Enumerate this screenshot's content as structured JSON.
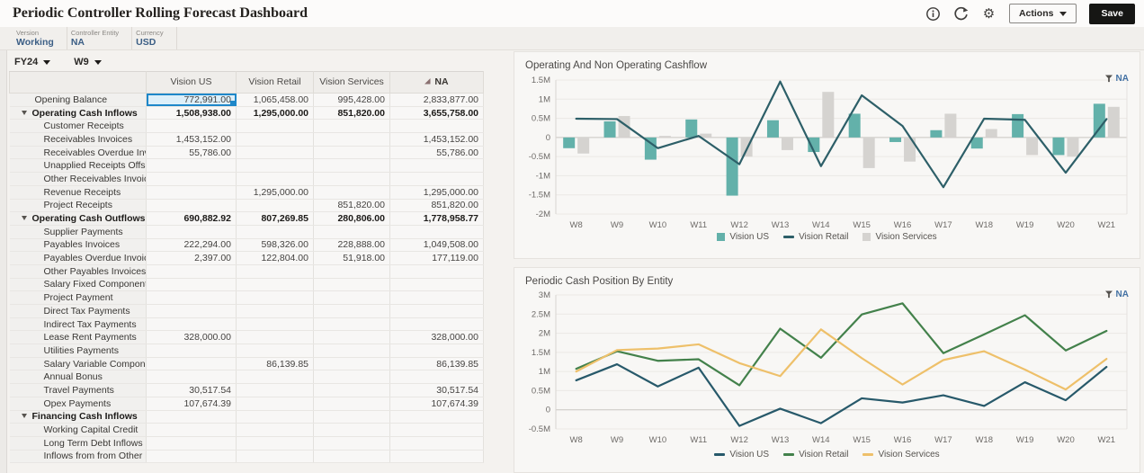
{
  "header": {
    "title": "Periodic Controller Rolling Forecast Dashboard",
    "actions_label": "Actions",
    "save_label": "Save"
  },
  "pov": {
    "items": [
      {
        "label": "Version",
        "value": "Working"
      },
      {
        "label": "Controller Entity",
        "value": "NA"
      },
      {
        "label": "Currency",
        "value": "USD"
      }
    ]
  },
  "grid": {
    "year": "FY24",
    "week": "W9",
    "columns": [
      "Vision US",
      "Vision Retail",
      "Vision Services",
      "NA"
    ],
    "rows": [
      {
        "label": "Opening Balance",
        "level": 0,
        "bold": false,
        "selected": 0,
        "values": [
          "772,991.00",
          "1,065,458.00",
          "995,428.00",
          "2,833,877.00"
        ]
      },
      {
        "label": "Operating Cash Inflows",
        "level": 0,
        "bold": true,
        "expand": true,
        "values": [
          "1,508,938.00",
          "1,295,000.00",
          "851,820.00",
          "3,655,758.00"
        ]
      },
      {
        "label": "Customer Receipts",
        "level": 1,
        "values": [
          "",
          "",
          "",
          ""
        ]
      },
      {
        "label": "Receivables Invoices",
        "level": 1,
        "values": [
          "1,453,152.00",
          "",
          "",
          "1,453,152.00"
        ]
      },
      {
        "label": "Receivables Overdue Invoices",
        "level": 1,
        "values": [
          "55,786.00",
          "",
          "",
          "55,786.00"
        ]
      },
      {
        "label": "Unapplied Receipts Offset",
        "level": 1,
        "values": [
          "",
          "",
          "",
          ""
        ]
      },
      {
        "label": "Other Receivables Invoices",
        "level": 1,
        "values": [
          "",
          "",
          "",
          ""
        ]
      },
      {
        "label": "Revenue Receipts",
        "level": 1,
        "values": [
          "",
          "1,295,000.00",
          "",
          "1,295,000.00"
        ]
      },
      {
        "label": "Project Receipts",
        "level": 1,
        "values": [
          "",
          "",
          "851,820.00",
          "851,820.00"
        ]
      },
      {
        "label": "Operating Cash Outflows",
        "level": 0,
        "bold": true,
        "expand": true,
        "values": [
          "690,882.92",
          "807,269.85",
          "280,806.00",
          "1,778,958.77"
        ]
      },
      {
        "label": "Supplier Payments",
        "level": 1,
        "values": [
          "",
          "",
          "",
          ""
        ]
      },
      {
        "label": "Payables Invoices",
        "level": 1,
        "values": [
          "222,294.00",
          "598,326.00",
          "228,888.00",
          "1,049,508.00"
        ]
      },
      {
        "label": "Payables Overdue Invoices",
        "level": 1,
        "values": [
          "2,397.00",
          "122,804.00",
          "51,918.00",
          "177,119.00"
        ]
      },
      {
        "label": "Other Payables Invoices",
        "level": 1,
        "values": [
          "",
          "",
          "",
          ""
        ]
      },
      {
        "label": "Salary Fixed Component",
        "level": 1,
        "values": [
          "",
          "",
          "",
          ""
        ]
      },
      {
        "label": "Project Payment",
        "level": 1,
        "values": [
          "",
          "",
          "",
          ""
        ]
      },
      {
        "label": "Direct Tax Payments",
        "level": 1,
        "values": [
          "",
          "",
          "",
          ""
        ]
      },
      {
        "label": "Indirect Tax Payments",
        "level": 1,
        "values": [
          "",
          "",
          "",
          ""
        ]
      },
      {
        "label": "Lease Rent Payments",
        "level": 1,
        "values": [
          "328,000.00",
          "",
          "",
          "328,000.00"
        ]
      },
      {
        "label": "Utilities Payments",
        "level": 1,
        "values": [
          "",
          "",
          "",
          ""
        ]
      },
      {
        "label": "Salary Variable Component",
        "level": 1,
        "values": [
          "",
          "86,139.85",
          "",
          "86,139.85"
        ]
      },
      {
        "label": "Annual Bonus",
        "level": 1,
        "values": [
          "",
          "",
          "",
          ""
        ]
      },
      {
        "label": "Travel Payments",
        "level": 1,
        "values": [
          "30,517.54",
          "",
          "",
          "30,517.54"
        ]
      },
      {
        "label": "Opex Payments",
        "level": 1,
        "values": [
          "107,674.39",
          "",
          "",
          "107,674.39"
        ]
      },
      {
        "label": "Financing Cash Inflows",
        "level": 0,
        "bold": true,
        "expand": true,
        "values": [
          "",
          "",
          "",
          ""
        ]
      },
      {
        "label": "Working Capital Credit",
        "level": 1,
        "values": [
          "",
          "",
          "",
          ""
        ]
      },
      {
        "label": "Long Term Debt Inflows",
        "level": 1,
        "values": [
          "",
          "",
          "",
          ""
        ]
      },
      {
        "label": "Inflows from from Other Entities",
        "level": 1,
        "values": [
          "",
          "",
          "",
          ""
        ]
      }
    ]
  },
  "chart_data": [
    {
      "type": "bar",
      "title": "Operating And Non Operating Cashflow",
      "pov_link": "NA",
      "unit": "M",
      "categories": [
        "W8",
        "W9",
        "W10",
        "W11",
        "W12",
        "W13",
        "W14",
        "W15",
        "W16",
        "W17",
        "W18",
        "W19",
        "W20",
        "W21"
      ],
      "series": [
        {
          "name": "Vision US",
          "type": "bar",
          "color": "#63b1aa",
          "values": [
            -0.28,
            0.42,
            -0.58,
            0.47,
            -1.52,
            0.45,
            -0.38,
            0.62,
            -0.12,
            0.19,
            -0.29,
            0.61,
            -0.46,
            0.88
          ]
        },
        {
          "name": "Vision Retail",
          "type": "line",
          "color": "#2d5f68",
          "values": [
            0.49,
            0.48,
            -0.28,
            0.04,
            -0.7,
            1.46,
            -0.75,
            1.1,
            0.3,
            -1.3,
            0.49,
            0.46,
            -0.92,
            0.48
          ]
        },
        {
          "name": "Vision Services",
          "type": "bar",
          "color": "#d5d3d0",
          "values": [
            -0.42,
            0.56,
            0.04,
            0.1,
            -0.5,
            -0.33,
            1.19,
            -0.8,
            -0.63,
            0.62,
            0.22,
            -0.46,
            -0.5,
            0.8
          ]
        }
      ],
      "ylim": [
        -2,
        1.5
      ],
      "yticks": [
        1.5,
        1,
        0.5,
        0,
        -0.5,
        -1,
        -1.5,
        -2
      ],
      "ytick_labels": [
        "1.5M",
        "1M",
        "0.5M",
        "0",
        "-0.5M",
        "-1M",
        "-1.5M",
        "-2M"
      ],
      "grid": true,
      "legend_position": "bottom"
    },
    {
      "type": "line",
      "title": "Periodic Cash Position By Entity",
      "pov_link": "NA",
      "unit": "M",
      "categories": [
        "W8",
        "W9",
        "W10",
        "W11",
        "W12",
        "W13",
        "W14",
        "W15",
        "W16",
        "W17",
        "W18",
        "W19",
        "W20",
        "W21"
      ],
      "series": [
        {
          "name": "Vision US",
          "type": "line",
          "color": "#27596a",
          "values": [
            0.77,
            1.19,
            0.61,
            1.1,
            -0.42,
            0.03,
            -0.35,
            0.3,
            0.19,
            0.38,
            0.1,
            0.72,
            0.25,
            1.12
          ]
        },
        {
          "name": "Vision Retail",
          "type": "line",
          "color": "#43814b",
          "values": [
            1.07,
            1.53,
            1.28,
            1.32,
            0.64,
            2.12,
            1.36,
            2.49,
            2.78,
            1.48,
            1.97,
            2.47,
            1.55,
            2.06
          ]
        },
        {
          "name": "Vision Services",
          "type": "line",
          "color": "#eec06a",
          "values": [
            1.0,
            1.56,
            1.6,
            1.71,
            1.22,
            0.88,
            2.1,
            1.35,
            0.66,
            1.3,
            1.53,
            1.05,
            0.53,
            1.33
          ]
        }
      ],
      "ylim": [
        -0.5,
        3
      ],
      "yticks": [
        3,
        2.5,
        2,
        1.5,
        1,
        0.5,
        0,
        -0.5
      ],
      "ytick_labels": [
        "3M",
        "2.5M",
        "2M",
        "1.5M",
        "1M",
        "0.5M",
        "0",
        "-0.5M"
      ],
      "grid": true,
      "legend_position": "bottom"
    }
  ],
  "colors": {
    "selection": "#1e87c9",
    "save_button": "#161614",
    "pov_value": "#3b5e85"
  }
}
